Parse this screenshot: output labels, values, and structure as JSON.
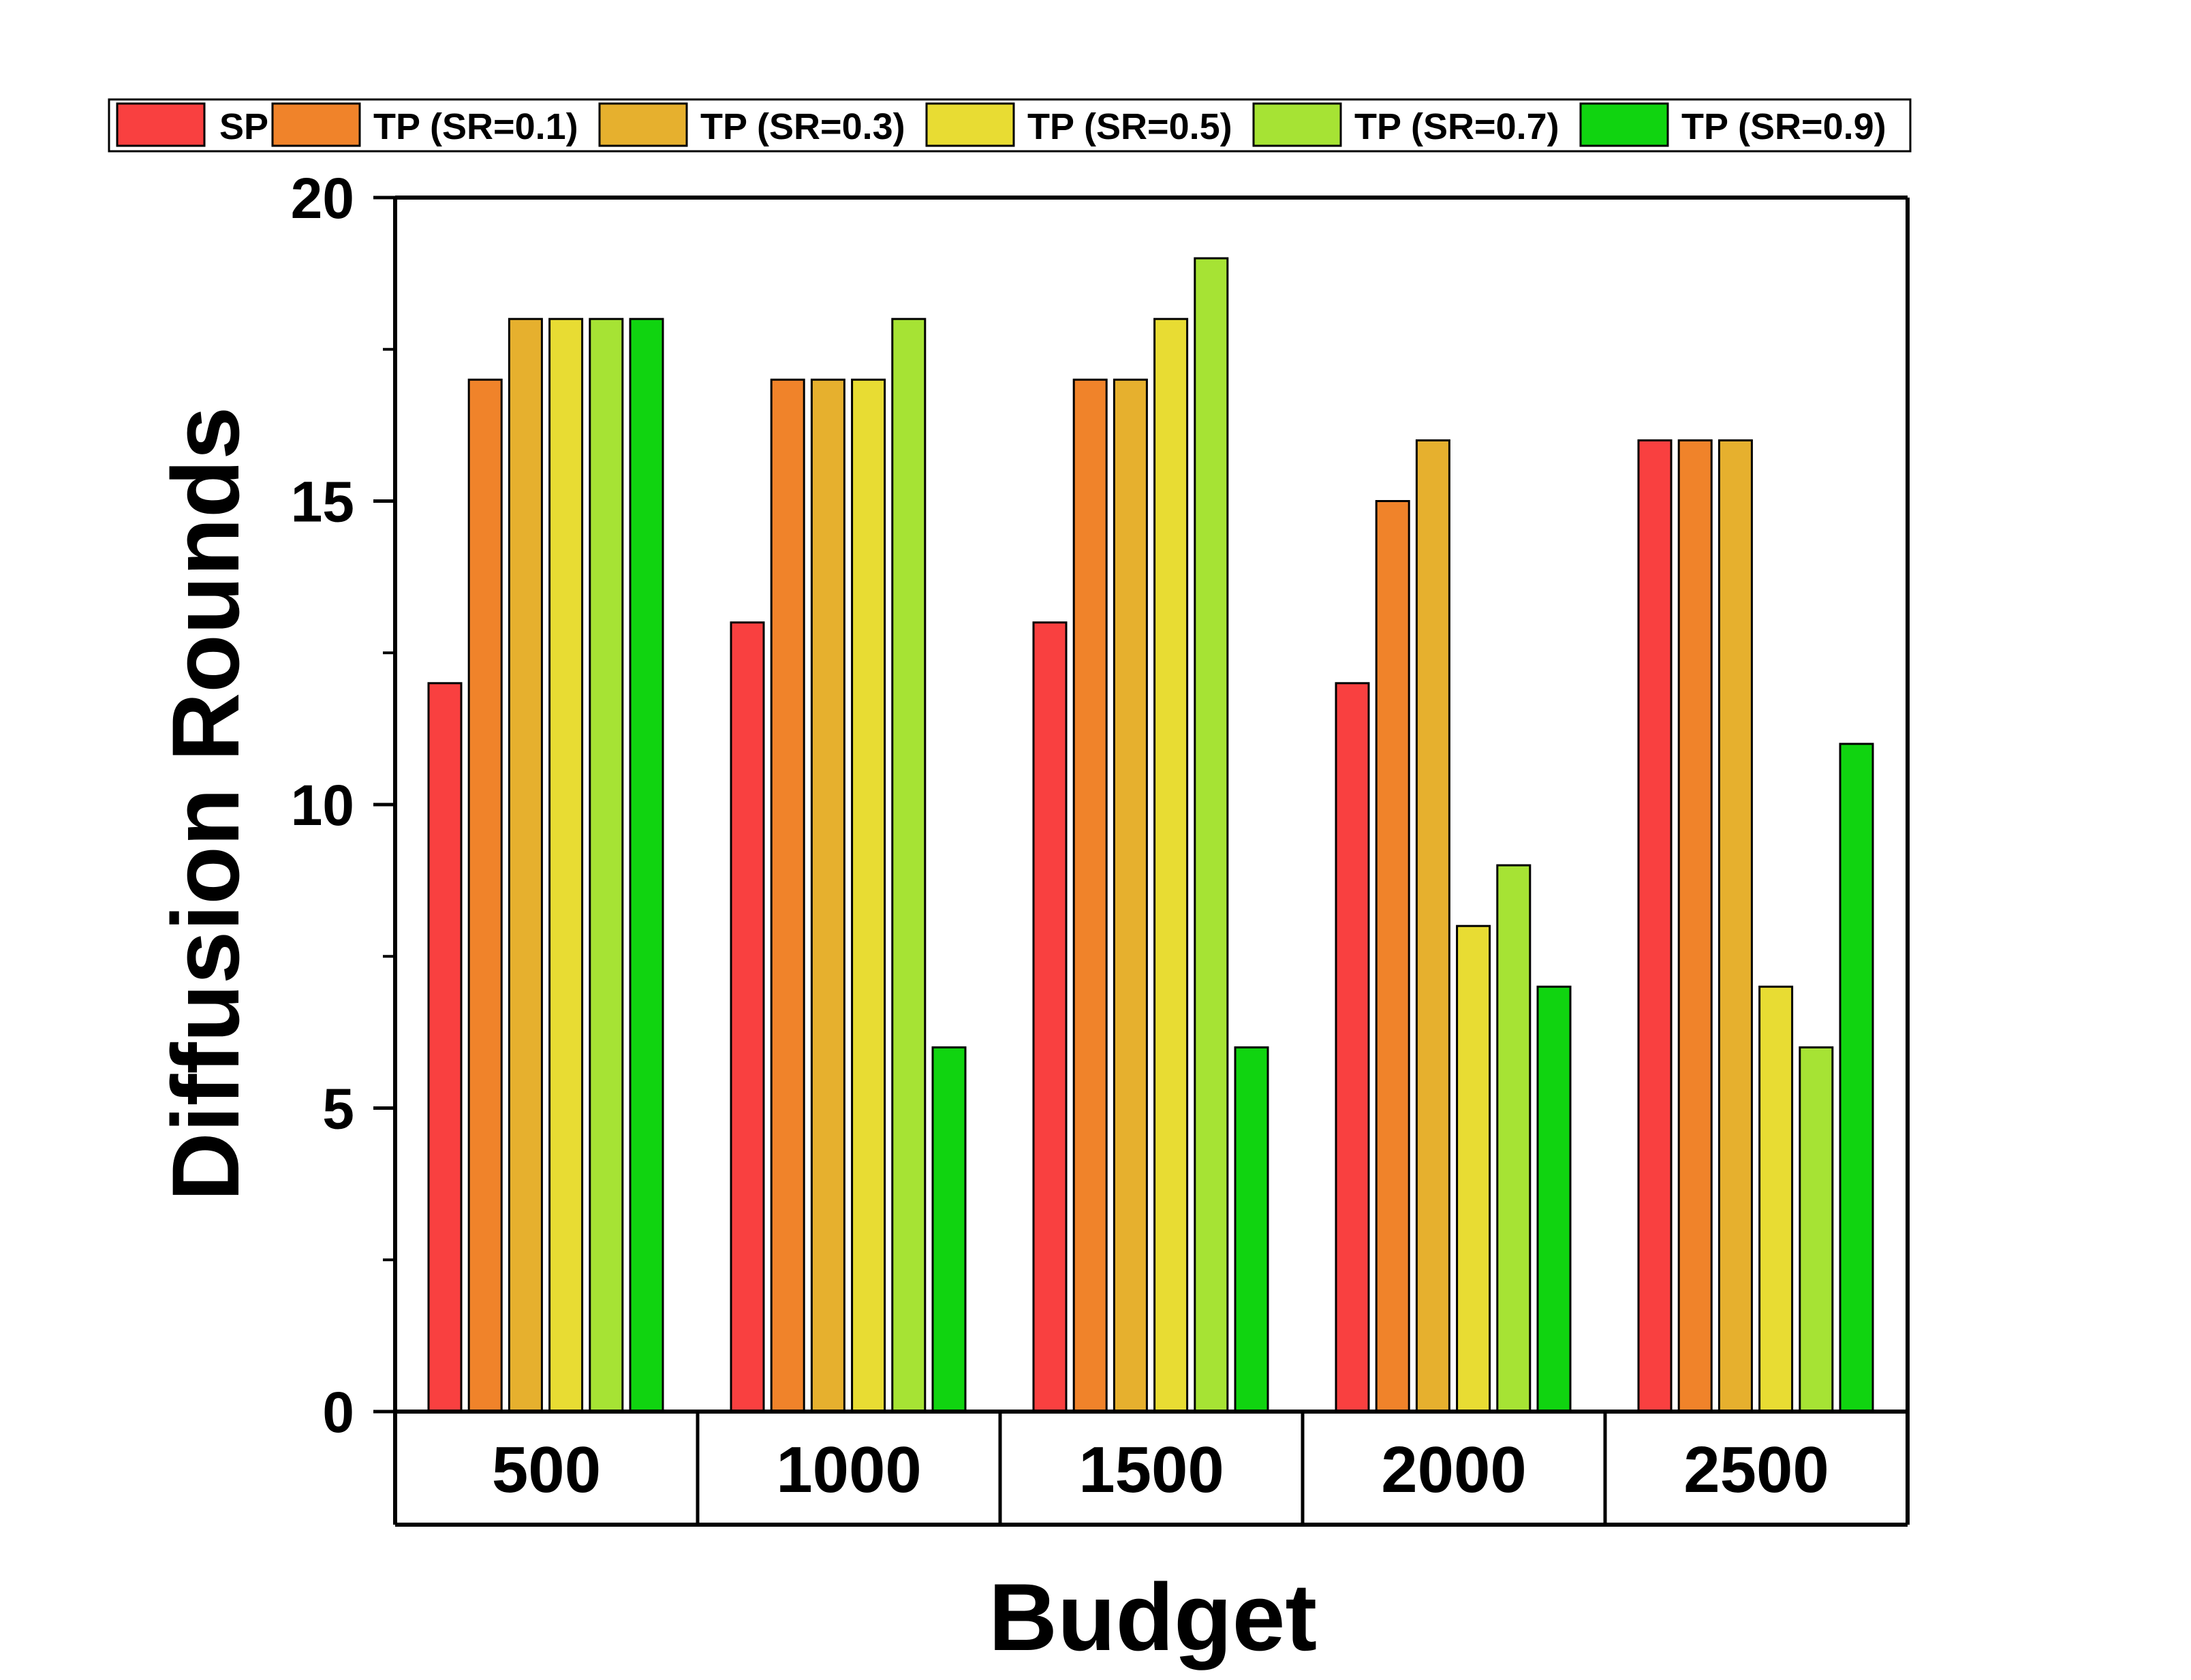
{
  "chart_data": {
    "type": "bar",
    "title": "",
    "xlabel": "Budget",
    "ylabel": "Diffusion Rounds",
    "categories": [
      "500",
      "1000",
      "1500",
      "2000",
      "2500"
    ],
    "ylim": [
      0,
      20
    ],
    "yticks": [
      "0",
      "5",
      "10",
      "15",
      "20"
    ],
    "grid": false,
    "legend_position": "top",
    "series": [
      {
        "name": "SP",
        "color": "#f94040",
        "values": [
          12,
          13,
          13,
          12,
          16
        ]
      },
      {
        "name": "TP (SR=0.1)",
        "color": "#f0832a",
        "values": [
          17,
          17,
          17,
          15,
          16
        ]
      },
      {
        "name": "TP (SR=0.3)",
        "color": "#e6b02e",
        "values": [
          18,
          17,
          17,
          16,
          16
        ]
      },
      {
        "name": "TP (SR=0.5)",
        "color": "#e8dc33",
        "values": [
          18,
          17,
          18,
          8,
          7
        ]
      },
      {
        "name": "TP (SR=0.7)",
        "color": "#a6e334",
        "values": [
          18,
          18,
          19,
          9,
          6
        ]
      },
      {
        "name": "TP (SR=0.9)",
        "color": "#10d410",
        "values": [
          18,
          6,
          6,
          7,
          11
        ]
      }
    ]
  }
}
